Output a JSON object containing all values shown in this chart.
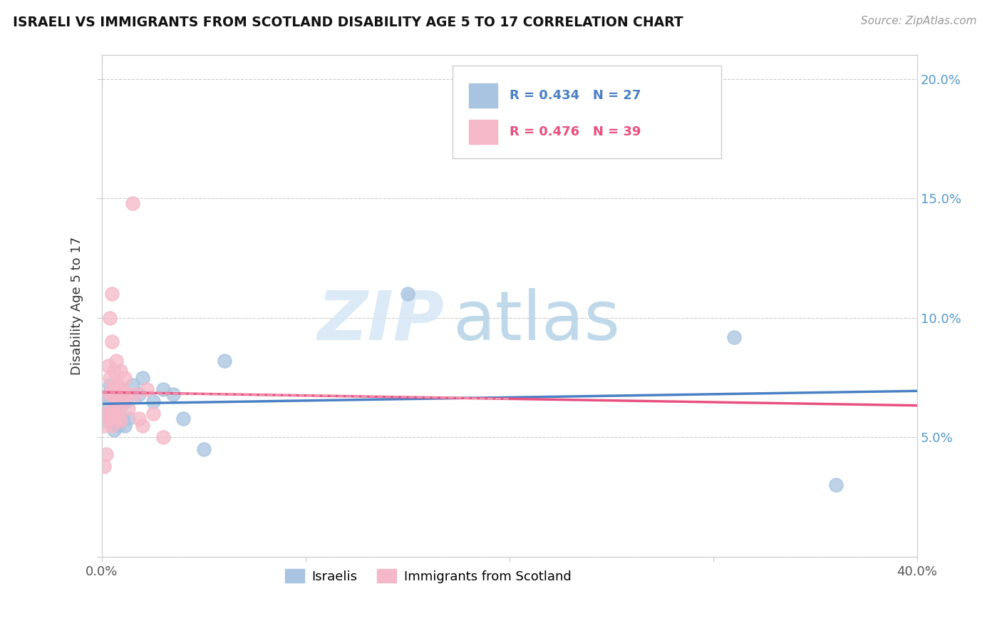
{
  "title": "ISRAELI VS IMMIGRANTS FROM SCOTLAND DISABILITY AGE 5 TO 17 CORRELATION CHART",
  "source": "Source: ZipAtlas.com",
  "ylabel": "Disability Age 5 to 17",
  "xlim": [
    0.0,
    0.4
  ],
  "ylim": [
    0.0,
    0.21
  ],
  "xticks": [
    0.0,
    0.1,
    0.2,
    0.3,
    0.4
  ],
  "xticklabels": [
    "0.0%",
    "",
    "",
    "",
    "40.0%"
  ],
  "yticks_right": [
    0.05,
    0.1,
    0.15,
    0.2
  ],
  "yticklabels_right": [
    "5.0%",
    "10.0%",
    "15.0%",
    "20.0%"
  ],
  "legend_israelis": "Israelis",
  "legend_scotland": "Immigrants from Scotland",
  "r_israelis": "R = 0.434",
  "n_israelis": "N = 27",
  "r_scotland": "R = 0.476",
  "n_scotland": "N = 39",
  "israelis_color": "#a8c4e0",
  "scotland_color": "#f5b8c8",
  "israelis_line_color": "#4a80c4",
  "scotland_line_color": "#e85080",
  "scotland_line_dashed_color": "#f5b8c8",
  "watermark_zip": "ZIP",
  "watermark_atlas": "atlas",
  "israelis_x": [
    0.001,
    0.002,
    0.003,
    0.004,
    0.004,
    0.005,
    0.006,
    0.006,
    0.007,
    0.008,
    0.009,
    0.01,
    0.011,
    0.012,
    0.013,
    0.015,
    0.018,
    0.02,
    0.025,
    0.03,
    0.035,
    0.04,
    0.05,
    0.06,
    0.15,
    0.31,
    0.36
  ],
  "israelis_y": [
    0.063,
    0.057,
    0.068,
    0.058,
    0.072,
    0.06,
    0.053,
    0.066,
    0.06,
    0.055,
    0.063,
    0.058,
    0.055,
    0.065,
    0.058,
    0.072,
    0.068,
    0.075,
    0.065,
    0.07,
    0.068,
    0.058,
    0.045,
    0.082,
    0.11,
    0.092,
    0.03
  ],
  "scotland_x": [
    0.001,
    0.001,
    0.002,
    0.002,
    0.003,
    0.003,
    0.004,
    0.004,
    0.004,
    0.005,
    0.005,
    0.005,
    0.005,
    0.006,
    0.006,
    0.006,
    0.007,
    0.007,
    0.007,
    0.007,
    0.008,
    0.008,
    0.008,
    0.009,
    0.009,
    0.01,
    0.01,
    0.011,
    0.012,
    0.013,
    0.015,
    0.016,
    0.018,
    0.02,
    0.022,
    0.025,
    0.03,
    0.005,
    0.004
  ],
  "scotland_y": [
    0.038,
    0.055,
    0.043,
    0.06,
    0.06,
    0.08,
    0.058,
    0.068,
    0.075,
    0.062,
    0.055,
    0.07,
    0.09,
    0.06,
    0.068,
    0.078,
    0.058,
    0.065,
    0.072,
    0.082,
    0.058,
    0.062,
    0.072,
    0.057,
    0.078,
    0.065,
    0.07,
    0.075,
    0.068,
    0.062,
    0.148,
    0.068,
    0.058,
    0.055,
    0.07,
    0.06,
    0.05,
    0.11,
    0.1
  ]
}
